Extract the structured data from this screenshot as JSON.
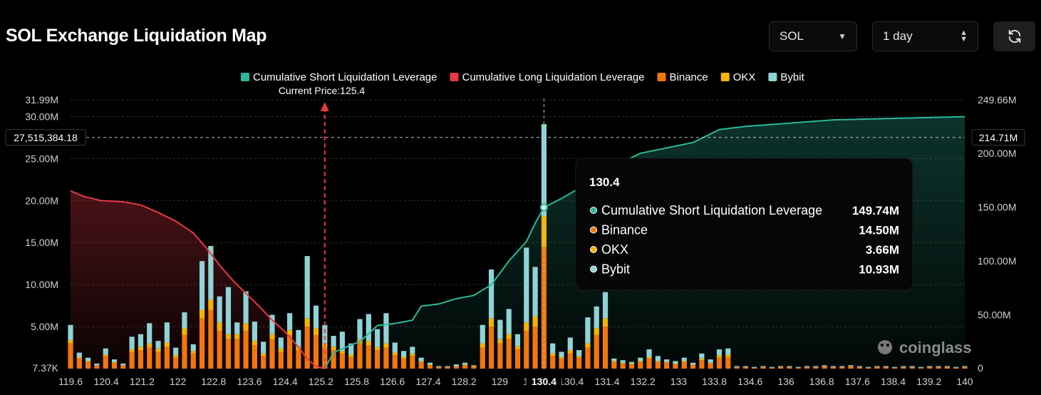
{
  "header": {
    "title": "SOL Exchange Liquidation Map",
    "coin": "SOL",
    "range": "1 day"
  },
  "watermark": "coinglass",
  "colors": {
    "short": "#2ab99a",
    "long": "#e63946",
    "binance": "#f2760c",
    "okx": "#f4b400",
    "bybit": "#8fd3d6",
    "price_line": "#e63946"
  },
  "chart_data": {
    "type": "bar",
    "title": "SOL Exchange Liquidation Map",
    "legend": [
      {
        "key": "short",
        "label": "Cumulative Short Liquidation Leverage"
      },
      {
        "key": "long",
        "label": "Cumulative Long Liquidation Leverage"
      },
      {
        "key": "binance",
        "label": "Binance"
      },
      {
        "key": "okx",
        "label": "OKX"
      },
      {
        "key": "bybit",
        "label": "Bybit"
      }
    ],
    "legend_position": "top-center",
    "x_range": [
      119.6,
      140.0
    ],
    "x_ticks": [
      "119.6",
      "120.4",
      "121.2",
      "122",
      "122.8",
      "123.6",
      "124.4",
      "125.2",
      "125.8",
      "126.6",
      "127.4",
      "128.2",
      "129",
      "129.8",
      "130.4",
      "131.4",
      "132.2",
      "133",
      "133.8",
      "134.6",
      "136",
      "136.8",
      "137.6",
      "138.4",
      "139.2",
      "140"
    ],
    "left_axis": {
      "min": 0,
      "max": 31.99,
      "ticks": [
        "7.37K",
        "5.00M",
        "10.00M",
        "15.00M",
        "20.00M",
        "25.00M",
        "30.00M",
        "31.99M"
      ]
    },
    "right_axis": {
      "min": 0,
      "max": 249.66,
      "ticks": [
        "0",
        "50.00M",
        "100.00M",
        "150.00M",
        "200.00M",
        "249.66M"
      ]
    },
    "current_price": {
      "value": 125.4,
      "label": "Current Price:125.4"
    },
    "crosshair": {
      "x": 130.4,
      "x_label": "130.4",
      "left_value": "27,515,384.18",
      "right_value": "214.71M"
    },
    "bars": [
      {
        "x": 119.6,
        "binance": 3.0,
        "okx": 0.4,
        "bybit": 1.8
      },
      {
        "x": 119.8,
        "binance": 1.2,
        "okx": 0.2,
        "bybit": 0.5
      },
      {
        "x": 120.0,
        "binance": 0.8,
        "okx": 0.1,
        "bybit": 0.4
      },
      {
        "x": 120.2,
        "binance": 0.4,
        "okx": 0.0,
        "bybit": 0.2
      },
      {
        "x": 120.4,
        "binance": 1.5,
        "okx": 0.2,
        "bybit": 0.7
      },
      {
        "x": 120.6,
        "binance": 0.7,
        "okx": 0.1,
        "bybit": 0.3
      },
      {
        "x": 120.8,
        "binance": 0.4,
        "okx": 0.0,
        "bybit": 0.2
      },
      {
        "x": 121.0,
        "binance": 2.0,
        "okx": 0.3,
        "bybit": 1.5
      },
      {
        "x": 121.2,
        "binance": 2.2,
        "okx": 0.4,
        "bybit": 1.5
      },
      {
        "x": 121.4,
        "binance": 2.5,
        "okx": 0.5,
        "bybit": 2.4
      },
      {
        "x": 121.6,
        "binance": 2.0,
        "okx": 0.4,
        "bybit": 0.9
      },
      {
        "x": 121.8,
        "binance": 2.6,
        "okx": 0.5,
        "bybit": 2.4
      },
      {
        "x": 122.0,
        "binance": 1.3,
        "okx": 0.3,
        "bybit": 0.9
      },
      {
        "x": 122.2,
        "binance": 4.0,
        "okx": 0.8,
        "bybit": 1.9
      },
      {
        "x": 122.4,
        "binance": 1.8,
        "okx": 0.3,
        "bybit": 0.8
      },
      {
        "x": 122.6,
        "binance": 6.0,
        "okx": 1.0,
        "bybit": 5.8
      },
      {
        "x": 122.8,
        "binance": 7.0,
        "okx": 1.2,
        "bybit": 6.4
      },
      {
        "x": 123.0,
        "binance": 4.5,
        "okx": 1.0,
        "bybit": 3.1
      },
      {
        "x": 123.2,
        "binance": 3.5,
        "okx": 0.6,
        "bybit": 5.6
      },
      {
        "x": 123.4,
        "binance": 3.5,
        "okx": 0.6,
        "bybit": 1.4
      },
      {
        "x": 123.6,
        "binance": 4.5,
        "okx": 0.9,
        "bybit": 3.8
      },
      {
        "x": 123.8,
        "binance": 2.8,
        "okx": 0.5,
        "bybit": 2.3
      },
      {
        "x": 124.0,
        "binance": 1.5,
        "okx": 0.3,
        "bybit": 1.4
      },
      {
        "x": 124.2,
        "binance": 3.5,
        "okx": 0.6,
        "bybit": 2.3
      },
      {
        "x": 124.4,
        "binance": 2.0,
        "okx": 0.4,
        "bybit": 1.3
      },
      {
        "x": 124.6,
        "binance": 4.0,
        "okx": 0.6,
        "bybit": 2.0
      },
      {
        "x": 124.8,
        "binance": 2.2,
        "okx": 0.4,
        "bybit": 2.0
      },
      {
        "x": 125.0,
        "binance": 5.0,
        "okx": 1.0,
        "bybit": 7.4
      },
      {
        "x": 125.2,
        "binance": 4.0,
        "okx": 0.8,
        "bybit": 2.7
      },
      {
        "x": 125.4,
        "binance": 2.5,
        "okx": 0.5,
        "bybit": 2.2
      },
      {
        "x": 125.6,
        "binance": 2.2,
        "okx": 0.4,
        "bybit": 1.3
      },
      {
        "x": 125.8,
        "binance": 1.8,
        "okx": 0.3,
        "bybit": 2.3
      },
      {
        "x": 126.0,
        "binance": 1.4,
        "okx": 0.3,
        "bybit": 1.3
      },
      {
        "x": 126.2,
        "binance": 3.0,
        "okx": 0.5,
        "bybit": 2.4
      },
      {
        "x": 126.4,
        "binance": 2.8,
        "okx": 0.5,
        "bybit": 3.2
      },
      {
        "x": 126.6,
        "binance": 2.2,
        "okx": 0.4,
        "bybit": 2.1
      },
      {
        "x": 126.8,
        "binance": 2.5,
        "okx": 0.5,
        "bybit": 3.6
      },
      {
        "x": 127.0,
        "binance": 1.6,
        "okx": 0.3,
        "bybit": 1.2
      },
      {
        "x": 127.2,
        "binance": 1.2,
        "okx": 0.2,
        "bybit": 0.7
      },
      {
        "x": 127.4,
        "binance": 1.5,
        "okx": 0.3,
        "bybit": 0.8
      },
      {
        "x": 127.6,
        "binance": 0.8,
        "okx": 0.1,
        "bybit": 0.4
      },
      {
        "x": 127.8,
        "binance": 0.4,
        "okx": 0.1,
        "bybit": 0.2
      },
      {
        "x": 128.0,
        "binance": 0.2,
        "okx": 0.0,
        "bybit": 0.1
      },
      {
        "x": 128.2,
        "binance": 0.2,
        "okx": 0.0,
        "bybit": 0.1
      },
      {
        "x": 128.4,
        "binance": 0.3,
        "okx": 0.0,
        "bybit": 0.2
      },
      {
        "x": 128.6,
        "binance": 0.4,
        "okx": 0.1,
        "bybit": 0.2
      },
      {
        "x": 128.8,
        "binance": 0.3,
        "okx": 0.0,
        "bybit": 0.1
      },
      {
        "x": 129.0,
        "binance": 2.5,
        "okx": 0.5,
        "bybit": 2.2
      },
      {
        "x": 129.2,
        "binance": 5.0,
        "okx": 1.0,
        "bybit": 5.8
      },
      {
        "x": 129.4,
        "binance": 3.0,
        "okx": 0.5,
        "bybit": 2.3
      },
      {
        "x": 129.6,
        "binance": 3.5,
        "okx": 0.6,
        "bybit": 3.0
      },
      {
        "x": 129.8,
        "binance": 2.3,
        "okx": 0.4,
        "bybit": 1.4
      },
      {
        "x": 130.0,
        "binance": 4.5,
        "okx": 1.0,
        "bybit": 8.9
      },
      {
        "x": 130.2,
        "binance": 5.0,
        "okx": 1.2,
        "bybit": 5.9
      },
      {
        "x": 130.4,
        "binance": 14.5,
        "okx": 3.66,
        "bybit": 10.93
      },
      {
        "x": 130.6,
        "binance": 1.5,
        "okx": 0.3,
        "bybit": 1.2
      },
      {
        "x": 130.8,
        "binance": 1.2,
        "okx": 0.2,
        "bybit": 0.6
      },
      {
        "x": 131.0,
        "binance": 1.8,
        "okx": 0.4,
        "bybit": 1.5
      },
      {
        "x": 131.2,
        "binance": 1.3,
        "okx": 0.2,
        "bybit": 0.7
      },
      {
        "x": 131.4,
        "binance": 2.5,
        "okx": 0.5,
        "bybit": 3.1
      },
      {
        "x": 131.6,
        "binance": 4.0,
        "okx": 0.8,
        "bybit": 2.6
      },
      {
        "x": 131.8,
        "binance": 5.0,
        "okx": 1.0,
        "bybit": 3.1
      },
      {
        "x": 132.0,
        "binance": 0.8,
        "okx": 0.1,
        "bybit": 0.3
      },
      {
        "x": 132.2,
        "binance": 0.6,
        "okx": 0.1,
        "bybit": 0.3
      },
      {
        "x": 132.4,
        "binance": 0.5,
        "okx": 0.1,
        "bybit": 0.2
      },
      {
        "x": 132.6,
        "binance": 0.8,
        "okx": 0.1,
        "bybit": 0.4
      },
      {
        "x": 132.8,
        "binance": 1.2,
        "okx": 0.2,
        "bybit": 0.9
      },
      {
        "x": 133.0,
        "binance": 0.8,
        "okx": 0.1,
        "bybit": 0.6
      },
      {
        "x": 133.2,
        "binance": 0.7,
        "okx": 0.1,
        "bybit": 0.3
      },
      {
        "x": 133.4,
        "binance": 0.5,
        "okx": 0.1,
        "bybit": 0.3
      },
      {
        "x": 133.6,
        "binance": 0.8,
        "okx": 0.1,
        "bybit": 0.4
      },
      {
        "x": 133.8,
        "binance": 0.4,
        "okx": 0.1,
        "bybit": 0.2
      },
      {
        "x": 134.0,
        "binance": 1.0,
        "okx": 0.2,
        "bybit": 0.6
      },
      {
        "x": 134.2,
        "binance": 0.6,
        "okx": 0.1,
        "bybit": 0.4
      },
      {
        "x": 134.4,
        "binance": 1.3,
        "okx": 0.3,
        "bybit": 0.7
      },
      {
        "x": 134.6,
        "binance": 1.4,
        "okx": 0.3,
        "bybit": 0.7
      },
      {
        "x": 134.8,
        "binance": 0.2,
        "okx": 0.0,
        "bybit": 0.1
      },
      {
        "x": 135.0,
        "binance": 0.2,
        "okx": 0.0,
        "bybit": 0.1
      },
      {
        "x": 135.2,
        "binance": 0.1,
        "okx": 0.0,
        "bybit": 0.1
      },
      {
        "x": 135.4,
        "binance": 0.2,
        "okx": 0.0,
        "bybit": 0.1
      },
      {
        "x": 135.6,
        "binance": 0.1,
        "okx": 0.0,
        "bybit": 0.1
      },
      {
        "x": 135.8,
        "binance": 0.2,
        "okx": 0.0,
        "bybit": 0.1
      },
      {
        "x": 136.0,
        "binance": 0.2,
        "okx": 0.0,
        "bybit": 0.1
      },
      {
        "x": 136.2,
        "binance": 0.1,
        "okx": 0.0,
        "bybit": 0.1
      },
      {
        "x": 136.4,
        "binance": 0.2,
        "okx": 0.0,
        "bybit": 0.1
      },
      {
        "x": 136.6,
        "binance": 0.2,
        "okx": 0.0,
        "bybit": 0.1
      },
      {
        "x": 136.8,
        "binance": 0.3,
        "okx": 0.0,
        "bybit": 0.1
      },
      {
        "x": 137.0,
        "binance": 0.2,
        "okx": 0.0,
        "bybit": 0.1
      },
      {
        "x": 137.2,
        "binance": 0.2,
        "okx": 0.0,
        "bybit": 0.1
      },
      {
        "x": 137.4,
        "binance": 0.3,
        "okx": 0.0,
        "bybit": 0.1
      },
      {
        "x": 137.6,
        "binance": 0.2,
        "okx": 0.0,
        "bybit": 0.1
      },
      {
        "x": 137.8,
        "binance": 0.1,
        "okx": 0.0,
        "bybit": 0.1
      },
      {
        "x": 138.0,
        "binance": 0.2,
        "okx": 0.0,
        "bybit": 0.1
      },
      {
        "x": 138.2,
        "binance": 0.2,
        "okx": 0.0,
        "bybit": 0.1
      },
      {
        "x": 138.4,
        "binance": 0.1,
        "okx": 0.0,
        "bybit": 0.1
      },
      {
        "x": 138.6,
        "binance": 0.2,
        "okx": 0.0,
        "bybit": 0.1
      },
      {
        "x": 138.8,
        "binance": 0.2,
        "okx": 0.0,
        "bybit": 0.1
      },
      {
        "x": 139.0,
        "binance": 0.1,
        "okx": 0.0,
        "bybit": 0.1
      },
      {
        "x": 139.2,
        "binance": 0.2,
        "okx": 0.0,
        "bybit": 0.1
      },
      {
        "x": 139.4,
        "binance": 0.2,
        "okx": 0.0,
        "bybit": 0.1
      },
      {
        "x": 139.6,
        "binance": 0.2,
        "okx": 0.0,
        "bybit": 0.1
      },
      {
        "x": 139.8,
        "binance": 0.1,
        "okx": 0.0,
        "bybit": 0.1
      },
      {
        "x": 140.0,
        "binance": 0.2,
        "okx": 0.0,
        "bybit": 0.1
      }
    ],
    "long_curve": [
      {
        "x": 119.6,
        "y": 165
      },
      {
        "x": 119.9,
        "y": 160
      },
      {
        "x": 120.3,
        "y": 156
      },
      {
        "x": 120.8,
        "y": 155
      },
      {
        "x": 121.2,
        "y": 152
      },
      {
        "x": 121.6,
        "y": 145
      },
      {
        "x": 122.0,
        "y": 137
      },
      {
        "x": 122.4,
        "y": 126
      },
      {
        "x": 122.7,
        "y": 112
      },
      {
        "x": 123.0,
        "y": 96
      },
      {
        "x": 123.3,
        "y": 82
      },
      {
        "x": 123.6,
        "y": 70
      },
      {
        "x": 123.9,
        "y": 58
      },
      {
        "x": 124.2,
        "y": 45
      },
      {
        "x": 124.5,
        "y": 34
      },
      {
        "x": 124.8,
        "y": 20
      },
      {
        "x": 125.0,
        "y": 9
      },
      {
        "x": 125.2,
        "y": 2
      },
      {
        "x": 125.4,
        "y": 0
      }
    ],
    "short_curve": [
      {
        "x": 125.4,
        "y": 0
      },
      {
        "x": 125.6,
        "y": 15
      },
      {
        "x": 126.0,
        "y": 22
      },
      {
        "x": 126.2,
        "y": 25
      },
      {
        "x": 126.6,
        "y": 40
      },
      {
        "x": 127.0,
        "y": 42
      },
      {
        "x": 127.4,
        "y": 45
      },
      {
        "x": 127.6,
        "y": 58
      },
      {
        "x": 128.0,
        "y": 60
      },
      {
        "x": 128.4,
        "y": 65
      },
      {
        "x": 128.8,
        "y": 68
      },
      {
        "x": 129.2,
        "y": 78
      },
      {
        "x": 129.6,
        "y": 100
      },
      {
        "x": 130.0,
        "y": 118
      },
      {
        "x": 130.2,
        "y": 135
      },
      {
        "x": 130.4,
        "y": 149.74
      },
      {
        "x": 130.8,
        "y": 158
      },
      {
        "x": 131.4,
        "y": 172
      },
      {
        "x": 132.0,
        "y": 188
      },
      {
        "x": 132.6,
        "y": 200
      },
      {
        "x": 133.2,
        "y": 205
      },
      {
        "x": 133.8,
        "y": 210
      },
      {
        "x": 134.4,
        "y": 222
      },
      {
        "x": 135.0,
        "y": 225
      },
      {
        "x": 136.0,
        "y": 228
      },
      {
        "x": 137.0,
        "y": 231
      },
      {
        "x": 138.0,
        "y": 232
      },
      {
        "x": 139.0,
        "y": 233
      },
      {
        "x": 140.0,
        "y": 234
      }
    ],
    "tooltip": {
      "title": "130.4",
      "rows": [
        {
          "key": "short",
          "label": "Cumulative Short Liquidation Leverage",
          "value": "149.74M"
        },
        {
          "key": "binance",
          "label": "Binance",
          "value": "14.50M"
        },
        {
          "key": "okx",
          "label": "OKX",
          "value": "3.66M"
        },
        {
          "key": "bybit",
          "label": "Bybit",
          "value": "10.93M"
        }
      ]
    }
  }
}
